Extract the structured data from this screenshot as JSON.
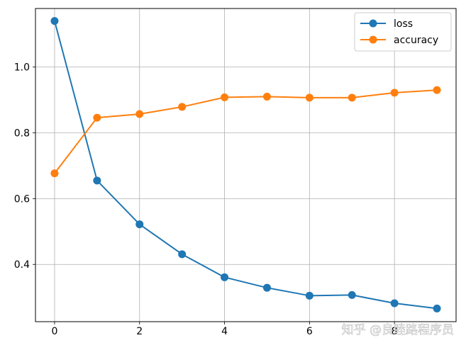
{
  "chart_data": {
    "type": "line",
    "x": [
      0,
      1,
      2,
      3,
      4,
      5,
      6,
      7,
      8,
      9
    ],
    "series": [
      {
        "name": "loss",
        "color": "#1f77b4",
        "marker": "circle",
        "values": [
          1.14,
          0.655,
          0.522,
          0.431,
          0.361,
          0.329,
          0.305,
          0.307,
          0.282,
          0.266
        ]
      },
      {
        "name": "accuracy",
        "color": "#ff7f0e",
        "marker": "circle",
        "values": [
          0.677,
          0.846,
          0.857,
          0.879,
          0.908,
          0.91,
          0.907,
          0.907,
          0.922,
          0.93
        ]
      }
    ],
    "xticks": [
      "0",
      "2",
      "4",
      "6",
      "8"
    ],
    "yticks": [
      "0.4",
      "0.6",
      "0.8",
      "1.0"
    ],
    "xlim": [
      -0.45,
      9.45
    ],
    "ylim": [
      0.226,
      1.178
    ],
    "grid": true,
    "legend_position": "top-right",
    "title": "",
    "xlabel": "",
    "ylabel": ""
  },
  "watermark": "知乎 @良睦路程序员"
}
